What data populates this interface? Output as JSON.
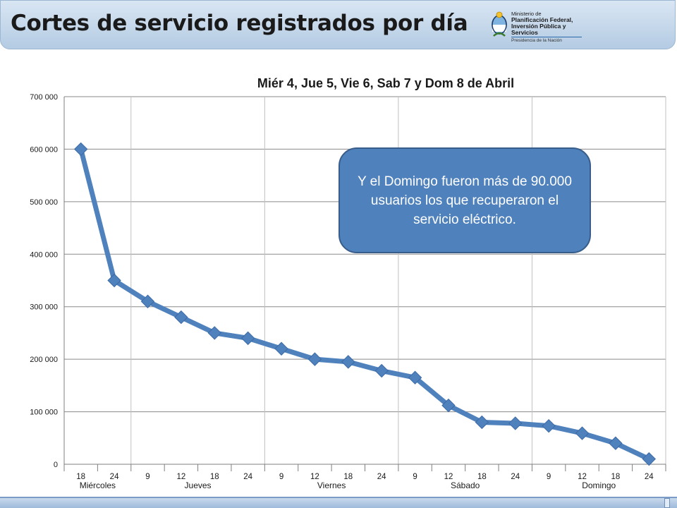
{
  "header": {
    "title": "Cortes de servicio registrados por día"
  },
  "logo": {
    "line1": "Ministerio de",
    "line2": "Planificación Federal,",
    "line3": "Inversión Pública y Servicios",
    "line4": "Presidencia de la Nación"
  },
  "callout": {
    "text": "Y el Domingo fueron más de 90.000 usuarios los que recuperaron el servicio eléctrico."
  },
  "chart_data": {
    "type": "line",
    "title": "Miér 4, Jue 5, Vie 6, Sab 7 y Dom 8 de Abril",
    "xlabel": "",
    "ylabel": "",
    "ylim": [
      0,
      700000
    ],
    "yticks": [
      0,
      100000,
      200000,
      300000,
      400000,
      500000,
      600000,
      700000
    ],
    "ytick_labels": [
      "0",
      "100 000",
      "200 000",
      "300 000",
      "400 000",
      "500 000",
      "600 000",
      "700 000"
    ],
    "categories": [
      "18",
      "24",
      "9",
      "12",
      "18",
      "24",
      "9",
      "12",
      "18",
      "24",
      "9",
      "12",
      "18",
      "24",
      "9",
      "12",
      "18",
      "24"
    ],
    "day_groups": [
      {
        "label": "Miércoles",
        "count": 2
      },
      {
        "label": "Jueves",
        "count": 4
      },
      {
        "label": "Viernes",
        "count": 4
      },
      {
        "label": "Sábado",
        "count": 4
      },
      {
        "label": "Domingo",
        "count": 4
      }
    ],
    "series": [
      {
        "values": [
          600000,
          350000,
          310000,
          280000,
          250000,
          240000,
          220000,
          200000,
          195000,
          178000,
          165000,
          112000,
          80000,
          78000,
          73000,
          59000,
          40000,
          10000
        ],
        "color": "#4f81bd",
        "marker": "diamond"
      }
    ],
    "grid": true,
    "legend": "none"
  }
}
